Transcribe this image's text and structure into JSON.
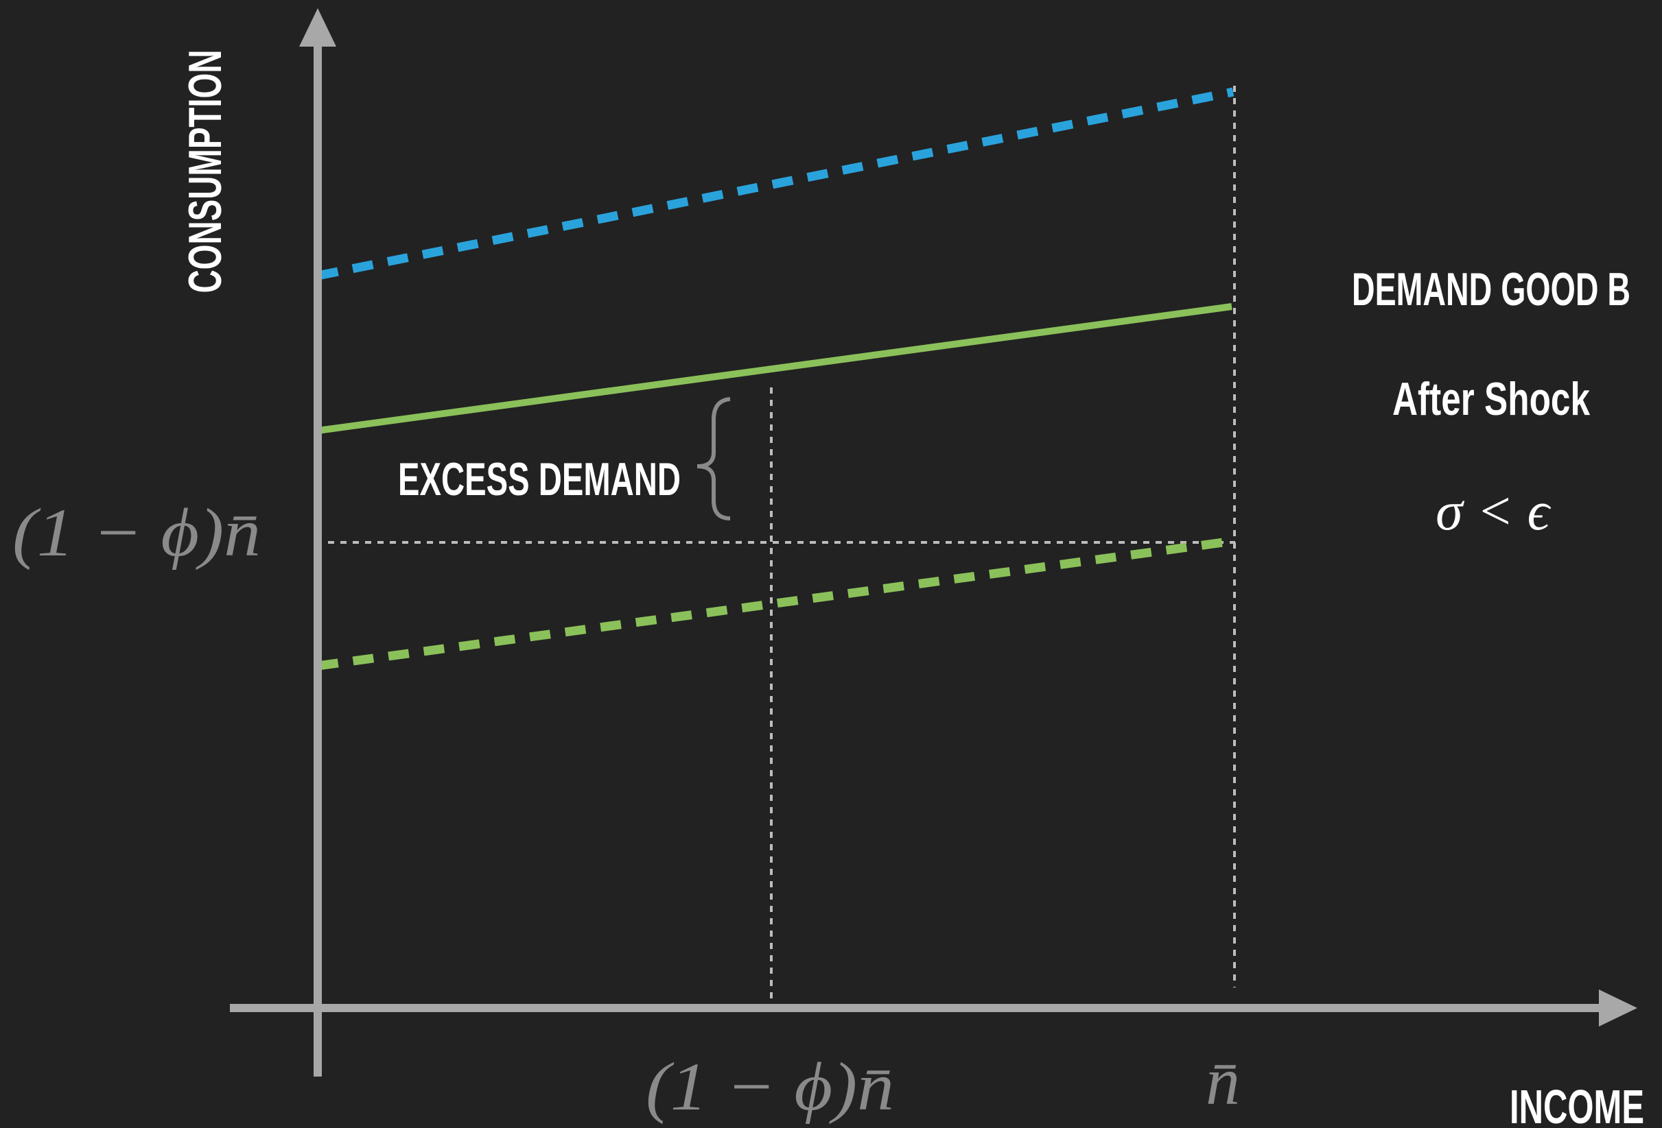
{
  "diagram": {
    "y_axis_label": "CONSUMPTION",
    "x_axis_label": "INCOME",
    "y_tick_label": "(1 − ϕ)n̄",
    "x_tick_1_label": "(1 − ϕ)n̄",
    "x_tick_2_label": "n̄",
    "excess_demand_label": "EXCESS DEMAND",
    "title_line1": "DEMAND GOOD B",
    "title_line2": "After Shock",
    "condition": "σ < ϵ",
    "colors": {
      "background": "#222222",
      "axis": "#a8a8a8",
      "blue_line": "#2aa3dc",
      "green_line": "#8bc15a",
      "guide": "#bdbdbd",
      "muted_text": "#8a8a8a"
    }
  }
}
